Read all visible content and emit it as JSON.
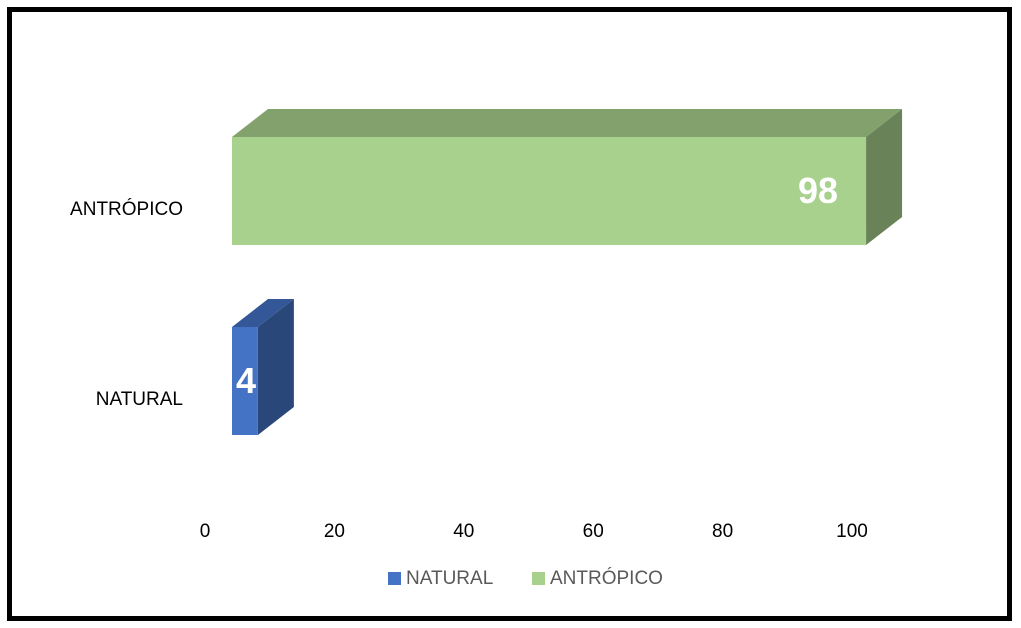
{
  "chart_data": {
    "type": "bar",
    "orientation": "horizontal",
    "style": "3d",
    "categories": [
      "NATURAL",
      "ANTRÓPICO"
    ],
    "series": [
      {
        "name": "NATURAL",
        "category": "NATURAL",
        "value": 4,
        "color": "#4472c4"
      },
      {
        "name": "ANTRÓPICO",
        "category": "ANTRÓPICO",
        "value": 98,
        "color": "#a9d18e"
      }
    ],
    "x_ticks": [
      "0",
      "20",
      "40",
      "60",
      "80",
      "100"
    ],
    "xlim": [
      0,
      100
    ],
    "title": "",
    "xlabel": "",
    "ylabel": "",
    "grid": false,
    "legend_position": "bottom"
  }
}
